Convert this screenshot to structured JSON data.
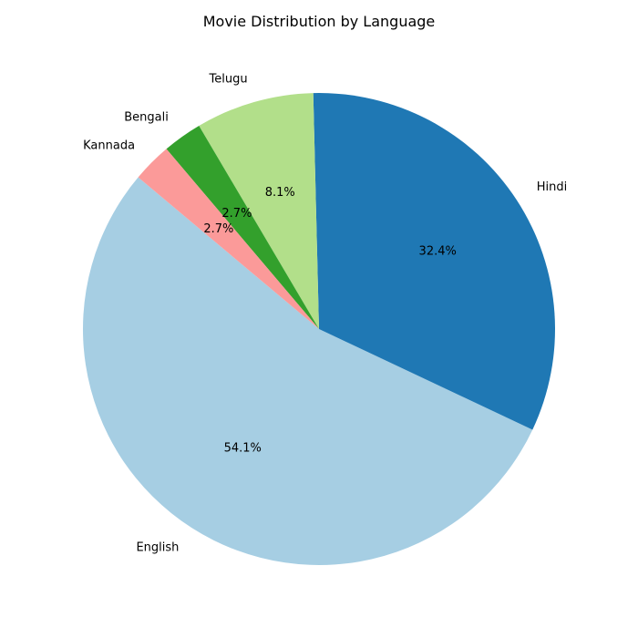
{
  "chart_data": {
    "type": "pie",
    "title": "Movie Distribution by Language",
    "categories": [
      "English",
      "Hindi",
      "Telugu",
      "Bengali",
      "Kannada"
    ],
    "values": [
      54.1,
      32.4,
      8.1,
      2.7,
      2.7
    ],
    "percent_labels": [
      "54.1%",
      "32.4%",
      "8.1%",
      "2.7%",
      "2.7%"
    ],
    "colors": [
      "#a6cee3",
      "#1f78b4",
      "#b2df8a",
      "#33a02c",
      "#fb9a99"
    ],
    "start_angle_deg": 140,
    "direction": "counterclockwise",
    "legend": "none"
  }
}
